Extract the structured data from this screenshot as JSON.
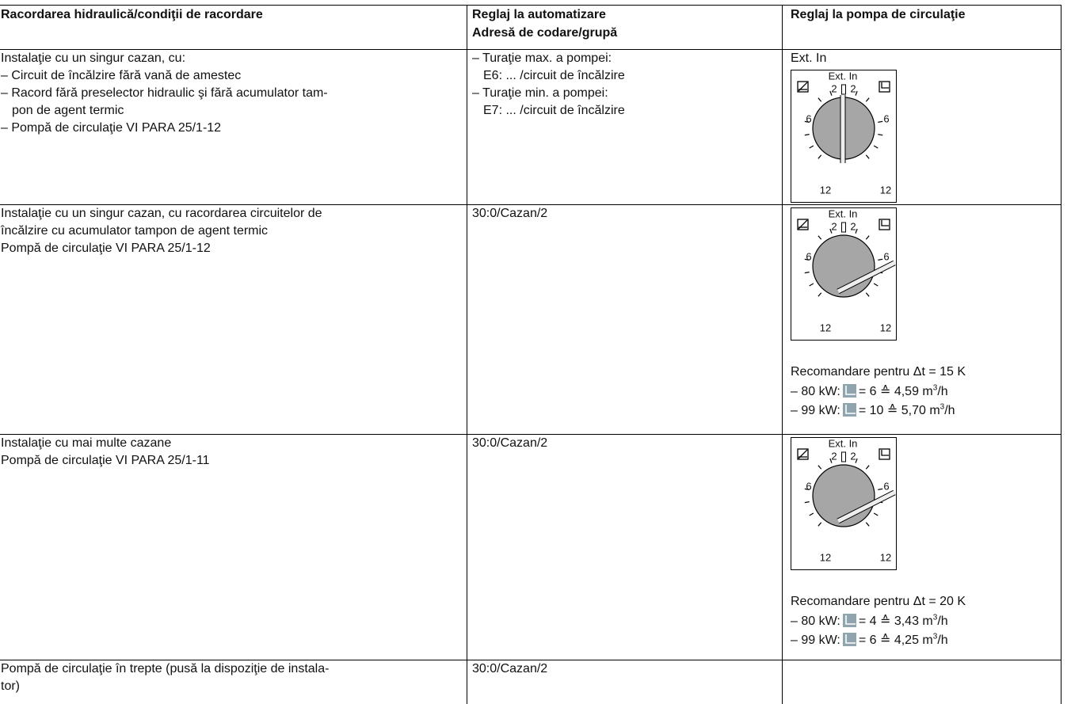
{
  "table": {
    "header": [
      [
        "Racordarea hidraulică/condiţii de racordare"
      ],
      [
        "Reglaj la automatizare",
        "Adresă de codare/grupă"
      ],
      [
        "Reglaj la pompa de circulaţie"
      ]
    ],
    "rows": [
      {
        "connection": [
          [
            "Instalaţie cu un singur cazan, cu:"
          ],
          [
            "– Circuit de încălzire fără vană de amestec"
          ],
          [
            "– Racord fără preselector hidraulic şi fără acumulator tam-",
            "pon de agent termic"
          ],
          [
            "– Pompă de circulaţie VI PARA 25/1-12"
          ]
        ],
        "control": [
          [
            "– Turaţie max. a pompei:",
            "E6: ... /circuit de încălzire"
          ],
          [
            "– Turaţie min. a pompei:",
            "E7: ... /circuit de încălzire"
          ]
        ],
        "pump": {
          "label": "Ext. In"
        }
      },
      {
        "connection": [
          [
            "Instalaţie cu un singur cazan, cu racordarea circuitelor de"
          ],
          [
            "încălzire cu acumulator tampon de agent termic"
          ],
          [
            "Pompă de circulaţie VI PARA 25/1-12"
          ]
        ],
        "control": [
          [
            "30:0/Cazan/2"
          ]
        ],
        "pump": {
          "recommendation": {
            "title": "Recomandare pentru Δt = 15 K",
            "lines": [
              {
                "label": "– 80 kW:",
                "value": "= 6 ≙ 4,59 m",
                "exp": "3",
                "unit": "/h"
              },
              {
                "label": "– 99 kW:",
                "value": "= 10 ≙ 5,70 m",
                "exp": "3",
                "unit": "/h"
              }
            ]
          }
        }
      },
      {
        "connection": [
          [
            "Instalaţie cu mai multe cazane"
          ],
          [
            "Pompă de circulaţie VI PARA 25/1-11"
          ]
        ],
        "control": [
          [
            "30:0/Cazan/2"
          ]
        ],
        "pump": {
          "recommendation": {
            "title": "Recomandare pentru Δt = 20 K",
            "lines": [
              {
                "label": "– 80 kW:",
                "value": "= 4 ≙ 3,43 m",
                "exp": "3",
                "unit": "/h"
              },
              {
                "label": "– 99 kW:",
                "value": "= 6 ≙ 4,25 m",
                "exp": "3",
                "unit": "/h"
              }
            ]
          }
        }
      },
      {
        "connection": [
          [
            "Pompă de circulaţie în trepte (pusă la dispoziţie de instala-",
            "tor)"
          ]
        ],
        "control": [
          [
            "30:0/Cazan/2"
          ]
        ]
      }
    ]
  },
  "dial": {
    "ext": "Ext. In",
    "inner": "2",
    "side": "6",
    "bottom": "12"
  }
}
